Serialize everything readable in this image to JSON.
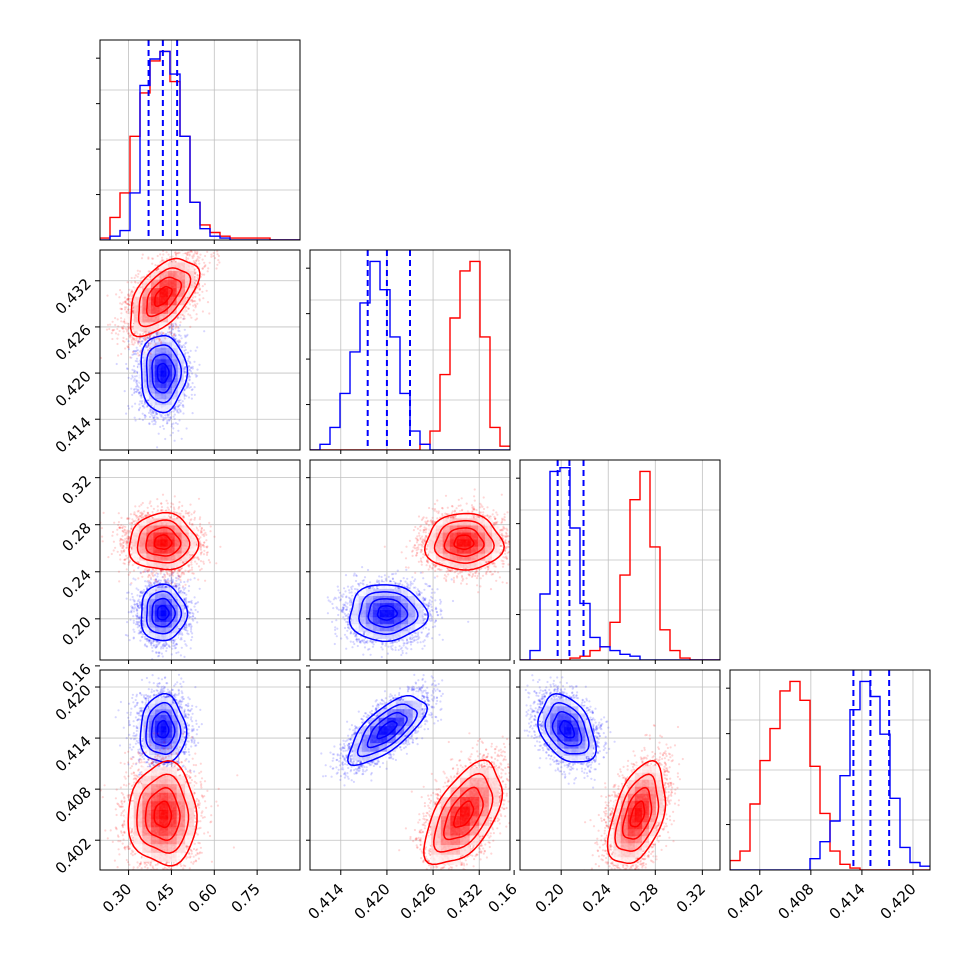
{
  "chart_data": {
    "type": "corner",
    "grid": true,
    "series": [
      {
        "name": "",
        "color": "#0000ff",
        "means": [
          0.42,
          0.42,
          0.205,
          0.415
        ],
        "sds": [
          0.04,
          0.0025,
          0.012,
          0.002
        ],
        "corr": [
          [
            1,
            0,
            0,
            0
          ],
          [
            0,
            1,
            0,
            0.7
          ],
          [
            0,
            0,
            1,
            -0.35
          ],
          [
            0,
            0.7,
            -0.35,
            1
          ]
        ],
        "quantiles_1d": [
          [
            0.37,
            0.42,
            0.47
          ],
          [
            0.4175,
            0.42,
            0.423
          ],
          [
            0.197,
            0.207,
            0.219
          ],
          [
            0.413,
            0.415,
            0.4172
          ]
        ]
      },
      {
        "name": "",
        "color": "#ff0000",
        "means": [
          0.42,
          0.43,
          0.265,
          0.405
        ],
        "sds": [
          0.06,
          0.0025,
          0.012,
          0.003
        ],
        "corr": [
          [
            1,
            0.55,
            0,
            0
          ],
          [
            0.55,
            1,
            0,
            0.55
          ],
          [
            0,
            0,
            1,
            0.45
          ],
          [
            0,
            0.55,
            0.45,
            1
          ]
        ]
      }
    ],
    "histograms": [
      {
        "range": [
          0.2,
          0.9
        ],
        "edges": [
          0.2,
          0.235,
          0.27,
          0.305,
          0.34,
          0.375,
          0.41,
          0.445,
          0.48,
          0.515,
          0.55,
          0.585,
          0.62,
          0.655,
          0.69,
          0.725,
          0.76,
          0.795,
          0.83,
          0.865,
          0.9
        ],
        "blue": [
          0,
          0.02,
          0.05,
          0.25,
          0.82,
          0.96,
          1.0,
          0.88,
          0.55,
          0.2,
          0.06,
          0.02,
          0.01,
          0,
          0,
          0,
          0,
          0,
          0,
          0
        ],
        "red": [
          0.01,
          0.12,
          0.25,
          0.55,
          0.78,
          0.95,
          1.0,
          0.84,
          0.55,
          0.2,
          0.08,
          0.04,
          0.02,
          0.01,
          0.01,
          0.01,
          0.01,
          0,
          0,
          0
        ]
      },
      {
        "range": [
          0.41,
          0.436
        ],
        "edges": [
          0.41,
          0.4113,
          0.4126,
          0.4139,
          0.4152,
          0.4165,
          0.4178,
          0.4191,
          0.4204,
          0.4217,
          0.423,
          0.4243,
          0.4256,
          0.4269,
          0.4282,
          0.4295,
          0.4308,
          0.4321,
          0.4334,
          0.4347,
          0.436
        ],
        "blue": [
          0,
          0.03,
          0.12,
          0.3,
          0.52,
          0.78,
          1.0,
          0.85,
          0.6,
          0.3,
          0.1,
          0.03,
          0,
          0,
          0,
          0,
          0,
          0,
          0,
          0
        ],
        "red": [
          0,
          0,
          0,
          0,
          0,
          0,
          0,
          0,
          0,
          0,
          0,
          0.03,
          0.1,
          0.4,
          0.7,
          0.95,
          1.0,
          0.6,
          0.12,
          0.02
        ]
      },
      {
        "range": [
          0.165,
          0.335
        ],
        "edges": [
          0.165,
          0.1735,
          0.182,
          0.1905,
          0.199,
          0.2075,
          0.216,
          0.2245,
          0.233,
          0.2415,
          0.25,
          0.2585,
          0.267,
          0.2755,
          0.284,
          0.2925,
          0.301,
          0.3095,
          0.318,
          0.3265,
          0.335
        ],
        "blue": [
          0,
          0.05,
          0.35,
          1.0,
          1.02,
          0.7,
          0.3,
          0.12,
          0.07,
          0.05,
          0.03,
          0.02,
          0,
          0,
          0,
          0,
          0,
          0,
          0,
          0
        ],
        "red": [
          0,
          0,
          0,
          0,
          0,
          0.01,
          0.02,
          0.05,
          0.07,
          0.2,
          0.45,
          0.85,
          1.0,
          0.6,
          0.16,
          0.05,
          0.01,
          0,
          0,
          0
        ]
      },
      {
        "range": [
          0.3985,
          0.422
        ],
        "edges": [
          0.3985,
          0.39967,
          0.40085,
          0.40203,
          0.4032,
          0.40437,
          0.40555,
          0.40673,
          0.4079,
          0.40907,
          0.41025,
          0.41143,
          0.4126,
          0.41377,
          0.41495,
          0.41613,
          0.4173,
          0.41847,
          0.41965,
          0.42083,
          0.422
        ],
        "blue": [
          0,
          0,
          0,
          0,
          0,
          0,
          0,
          0,
          0.06,
          0.15,
          0.26,
          0.5,
          0.85,
          1.0,
          0.92,
          0.72,
          0.38,
          0.12,
          0.04,
          0.02
        ],
        "red": [
          0.05,
          0.1,
          0.35,
          0.58,
          0.75,
          0.95,
          1.0,
          0.9,
          0.55,
          0.3,
          0.1,
          0.03,
          0.01,
          0,
          0,
          0,
          0,
          0,
          0,
          0
        ]
      }
    ],
    "axes": [
      {
        "range": [
          0.2,
          0.9
        ],
        "ticks": [
          0.3,
          0.45,
          0.6,
          0.75
        ],
        "tick_labels": [
          "0.30",
          "0.45",
          "0.60",
          "0.75"
        ]
      },
      {
        "range": [
          0.41,
          0.436
        ],
        "ticks": [
          0.414,
          0.42,
          0.426,
          0.432
        ],
        "tick_labels": [
          "0.414",
          "0.420",
          "0.426",
          "0.432"
        ]
      },
      {
        "range": [
          0.165,
          0.335
        ],
        "ticks": [
          0.16,
          0.2,
          0.24,
          0.28,
          0.32
        ],
        "tick_labels": [
          "0.16",
          "0.20",
          "0.24",
          "0.28",
          "0.32"
        ]
      },
      {
        "range": [
          0.3985,
          0.422
        ],
        "ticks": [
          0.402,
          0.408,
          0.414,
          0.42
        ],
        "tick_labels": [
          "0.402",
          "0.408",
          "0.414",
          "0.420"
        ]
      }
    ]
  }
}
